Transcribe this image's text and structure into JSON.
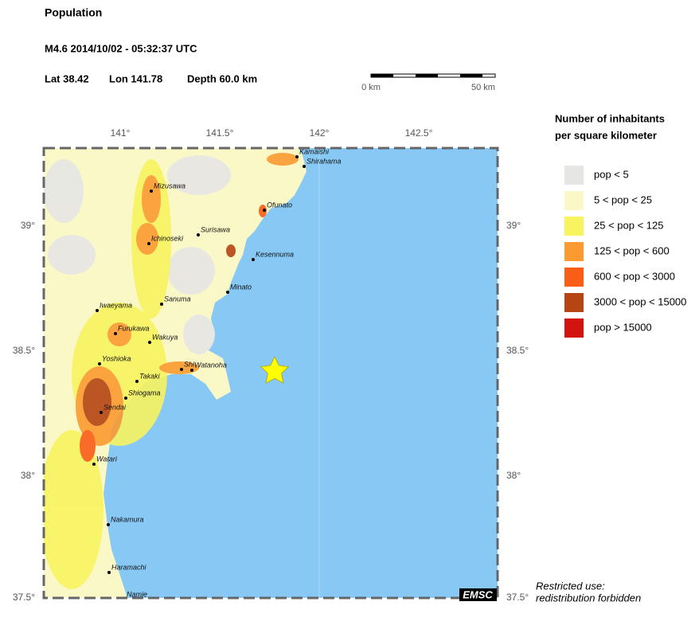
{
  "header": {
    "title": "Population",
    "event": "M4.6  2014/10/02 - 05:32:37 UTC",
    "lat": "Lat 38.42",
    "lon": "Lon 141.78",
    "depth": "Depth  60.0 km"
  },
  "scale_bar": {
    "start": "0 km",
    "end": "50 km"
  },
  "legend": {
    "title": [
      "Number of inhabitants",
      "per square kilometer"
    ],
    "items": [
      {
        "label": "pop < 5",
        "color": "#e6e6e4"
      },
      {
        "label": "5 < pop < 25",
        "color": "#fbf8c8"
      },
      {
        "label": "25 < pop < 125",
        "color": "#f8f45f"
      },
      {
        "label": "125 < pop < 600",
        "color": "#fa9a31"
      },
      {
        "label": "600 < pop < 3000",
        "color": "#f95d16"
      },
      {
        "label": "3000 < pop < 15000",
        "color": "#b54513"
      },
      {
        "label": "pop > 15000",
        "color": "#d3130d"
      }
    ]
  },
  "map": {
    "lon_ticks": [
      "141°",
      "141.5°",
      "142°",
      "142.5°"
    ],
    "lat_ticks": [
      "39°",
      "38.5°",
      "38°",
      "37.5°"
    ],
    "cities": [
      "Kamaishi",
      "Shirahama",
      "Mizusawa",
      "Ofunato",
      "Surisawa",
      "Ichinoseki",
      "Kesennuma",
      "Minato",
      "Sanuma",
      "Iwaeyama",
      "Furukawa",
      "Wakuya",
      "Yoshioka",
      "Shi",
      "Watanoha",
      "Takaki",
      "Shiogama",
      "Sendai",
      "Watari",
      "Nakamura",
      "Haramachi",
      "Namie"
    ],
    "badge": "EMSC",
    "note": [
      "Restricted use:",
      "redistribution forbidden"
    ]
  }
}
